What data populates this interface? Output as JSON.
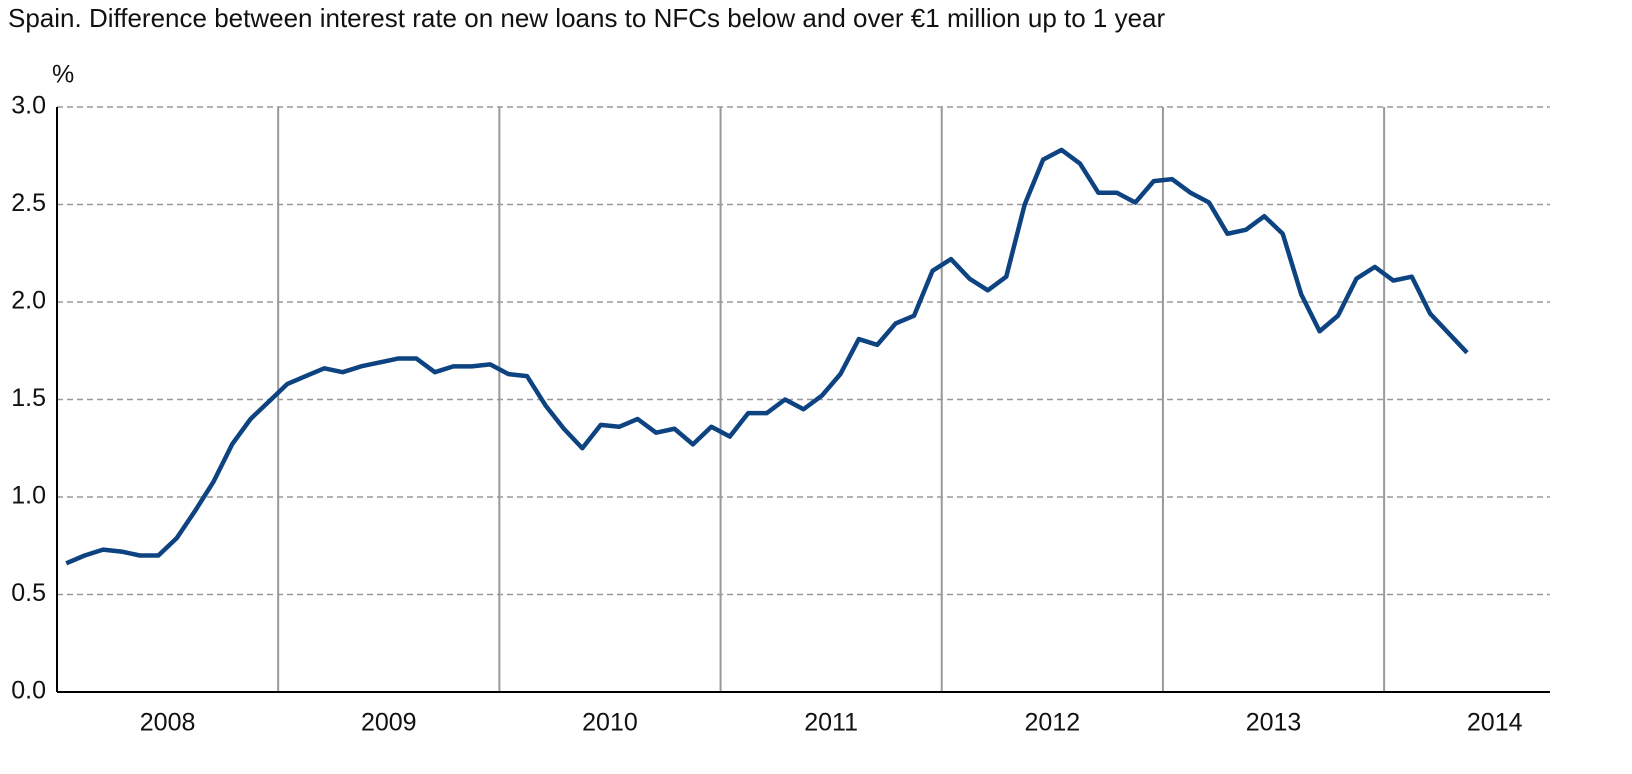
{
  "chart_data": {
    "type": "line",
    "title": "Spain. Difference between interest rate on new loans to NFCs below and over €1 million up to 1 year",
    "y_label": "%",
    "categories": [
      null,
      null,
      null,
      null,
      null,
      null,
      "2008",
      null,
      null,
      null,
      null,
      null,
      null,
      null,
      null,
      null,
      null,
      null,
      "2009",
      null,
      null,
      null,
      null,
      null,
      null,
      null,
      null,
      null,
      null,
      null,
      "2010",
      null,
      null,
      null,
      null,
      null,
      null,
      null,
      null,
      null,
      null,
      null,
      "2011",
      null,
      null,
      null,
      null,
      null,
      null,
      null,
      null,
      null,
      null,
      null,
      "2012",
      null,
      null,
      null,
      null,
      null,
      null,
      null,
      null,
      null,
      null,
      null,
      "2013",
      null,
      null,
      null,
      null,
      null,
      null,
      null,
      null,
      null,
      null,
      null,
      "2014",
      null,
      null
    ],
    "values": [
      0.66,
      0.7,
      0.73,
      0.72,
      0.7,
      0.7,
      0.79,
      0.93,
      1.08,
      1.27,
      1.4,
      1.49,
      1.58,
      1.62,
      1.66,
      1.64,
      1.67,
      1.69,
      1.71,
      1.71,
      1.64,
      1.67,
      1.67,
      1.68,
      1.63,
      1.62,
      1.47,
      1.35,
      1.25,
      1.37,
      1.36,
      1.4,
      1.33,
      1.35,
      1.27,
      1.36,
      1.31,
      1.43,
      1.43,
      1.5,
      1.45,
      1.52,
      1.63,
      1.81,
      1.78,
      1.89,
      1.93,
      2.16,
      2.22,
      2.12,
      2.06,
      2.13,
      2.5,
      2.73,
      2.78,
      2.71,
      2.56,
      2.56,
      2.51,
      2.62,
      2.63,
      2.56,
      2.51,
      2.35,
      2.37,
      2.44,
      2.35,
      2.04,
      1.85,
      1.93,
      2.12,
      2.18,
      2.11,
      2.13,
      1.94,
      1.84,
      1.74,
      null,
      null,
      null,
      null
    ],
    "color": "#0d4381",
    "ylim": [
      0,
      3
    ],
    "yticks": [
      {
        "value": 0,
        "label": "0.0"
      },
      0.5,
      {
        "value": 1,
        "label": "1.0"
      },
      1.5,
      {
        "value": 2,
        "label": "2.0"
      },
      2.5,
      {
        "value": 3,
        "label": "3.0"
      }
    ],
    "grid": true
  }
}
